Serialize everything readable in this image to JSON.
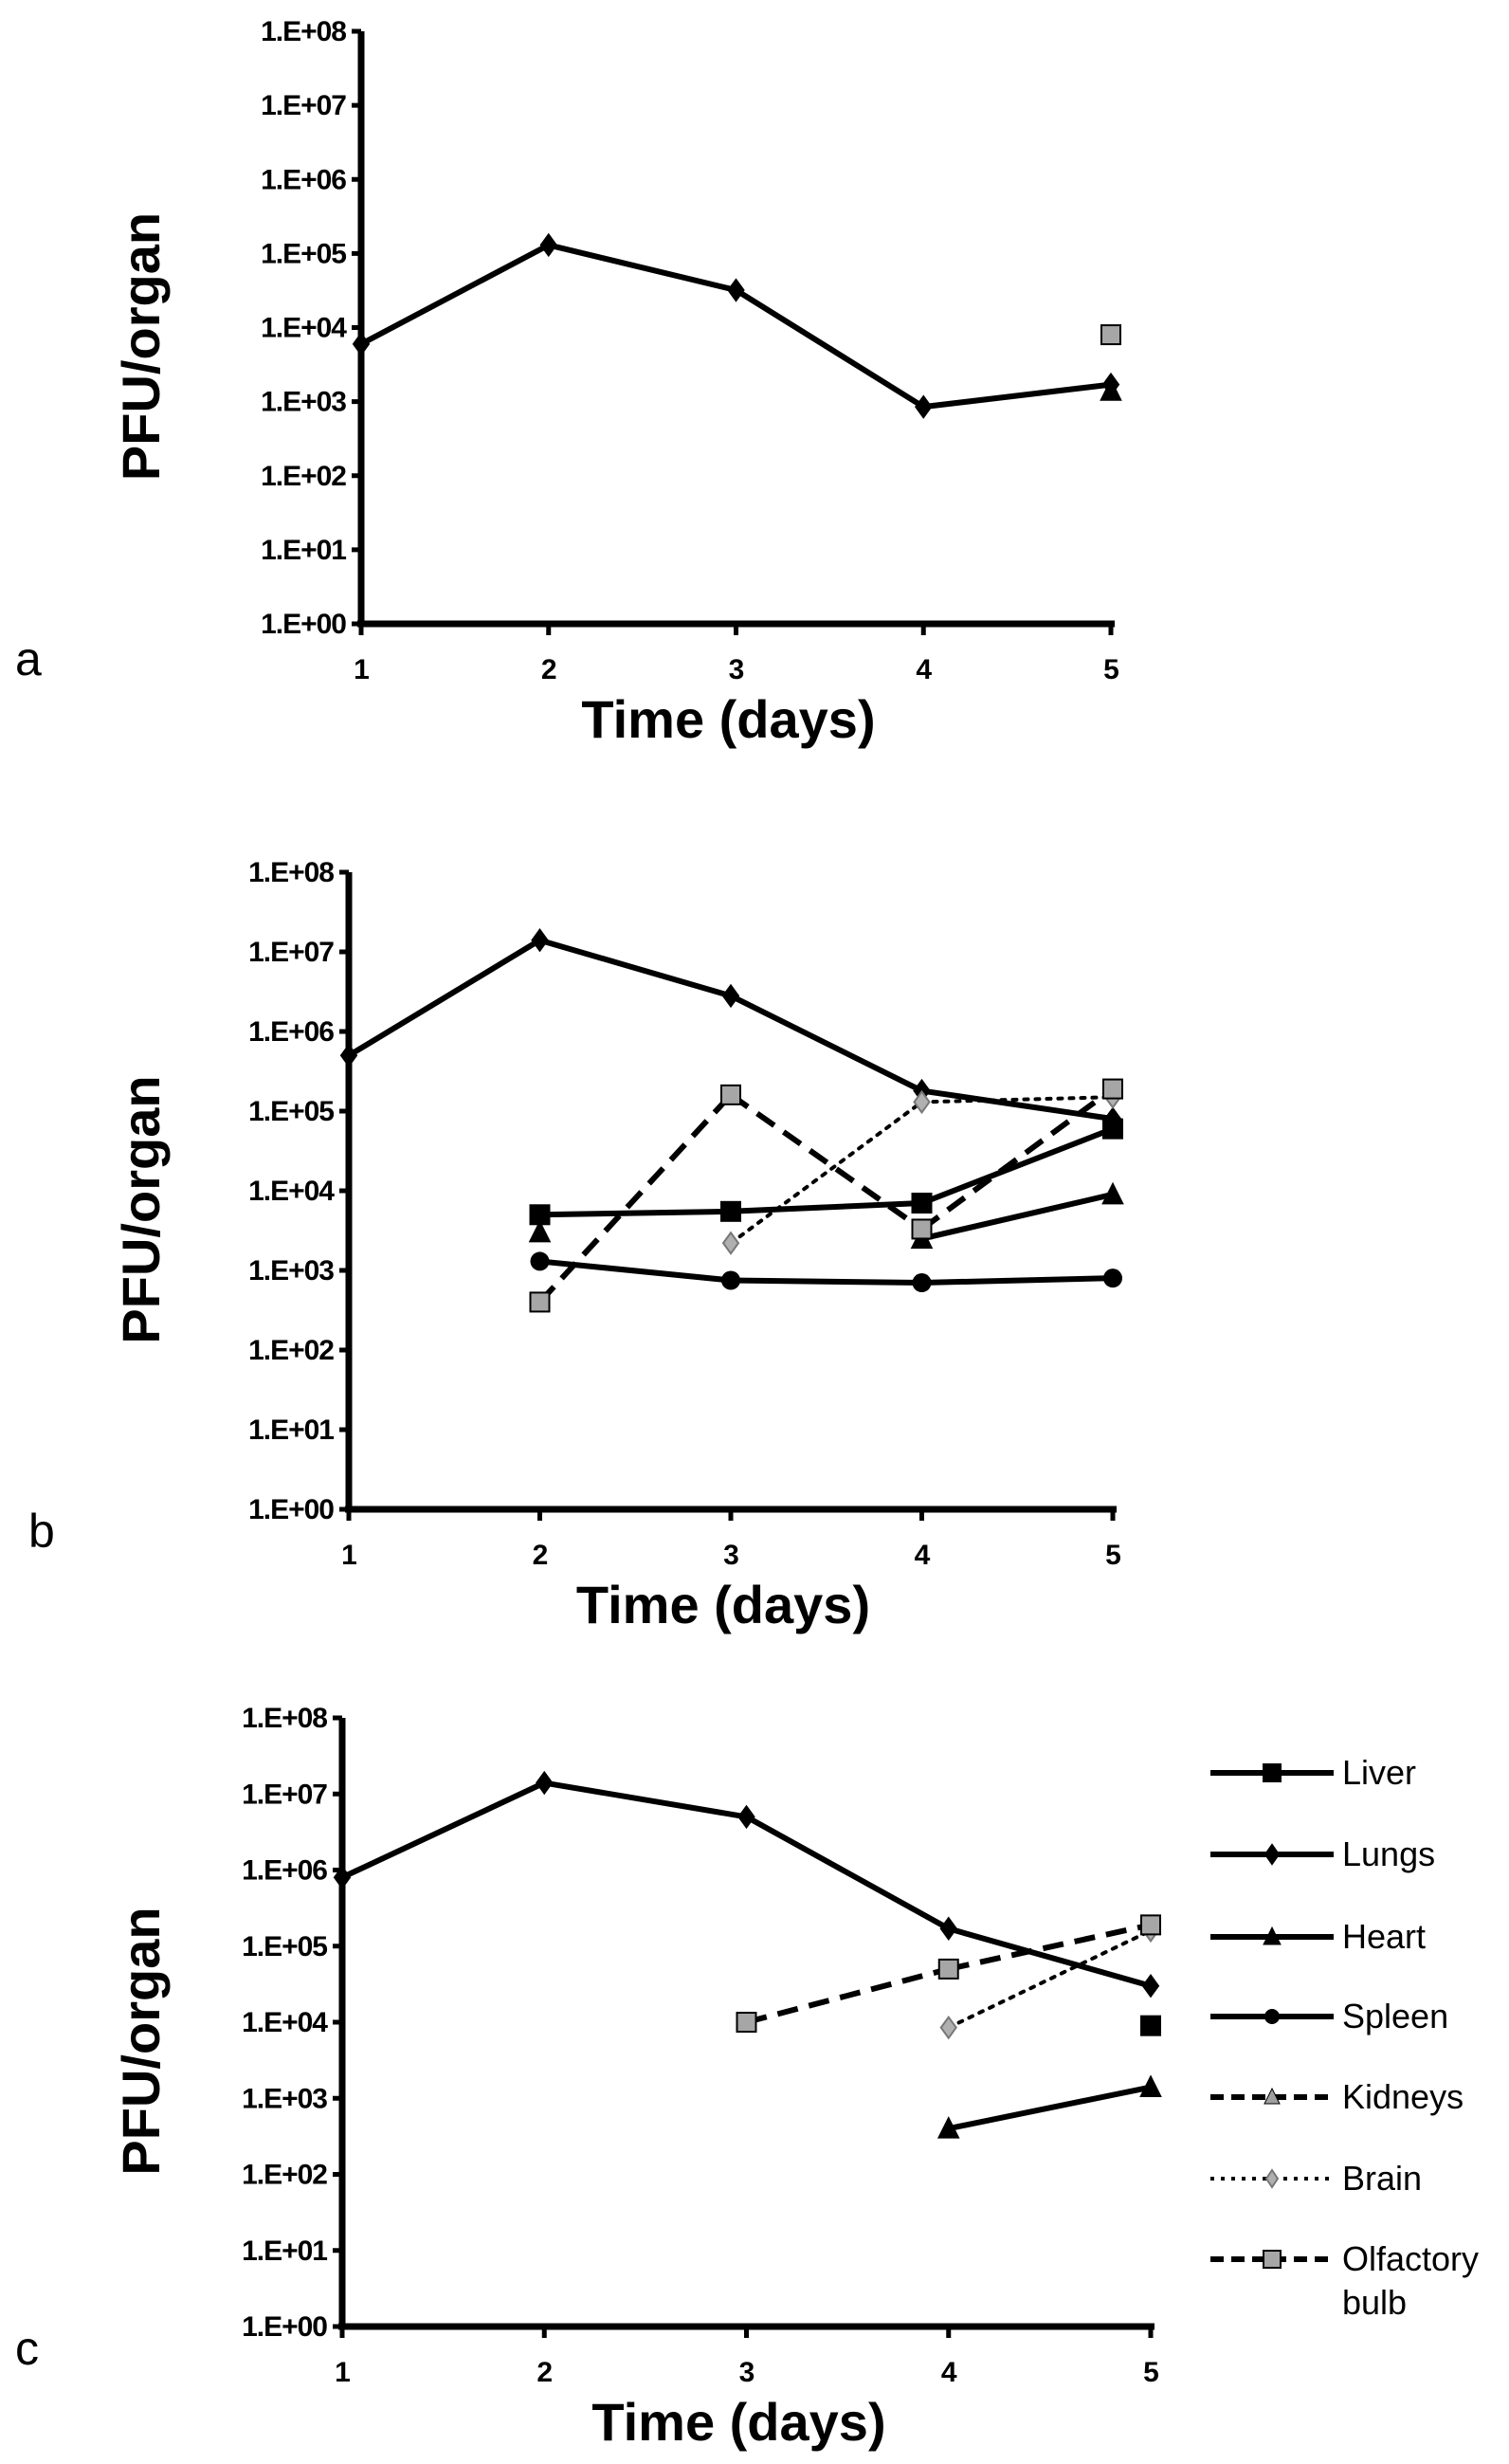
{
  "chart_data": [
    {
      "type": "line",
      "panel": "a",
      "xlabel": "Time (days)",
      "ylabel": "PFU/organ",
      "yscale": "log",
      "ylim": [
        1,
        100000000
      ],
      "xlim": [
        1,
        5
      ],
      "x": [
        1,
        2,
        3,
        4,
        5
      ],
      "xticks": [
        "1",
        "2",
        "3",
        "4",
        "5"
      ],
      "yticks": [
        "1.E+00",
        "1.E+01",
        "1.E+02",
        "1.E+03",
        "1.E+04",
        "1.E+05",
        "1.E+06",
        "1.E+07",
        "1.E+08"
      ],
      "series": [
        {
          "name": "Lungs",
          "values": [
            6000,
            130000,
            32000,
            850,
            1700
          ]
        },
        {
          "name": "Heart",
          "values": [
            null,
            null,
            null,
            null,
            1400
          ]
        },
        {
          "name": "Olfactory bulb",
          "values": [
            null,
            null,
            null,
            null,
            8000
          ]
        }
      ]
    },
    {
      "type": "line",
      "panel": "b",
      "xlabel": "Time (days)",
      "ylabel": "PFU/organ",
      "yscale": "log",
      "ylim": [
        1,
        100000000
      ],
      "xlim": [
        1,
        5
      ],
      "x": [
        1,
        2,
        3,
        4,
        5
      ],
      "xticks": [
        "1",
        "2",
        "3",
        "4",
        "5"
      ],
      "yticks": [
        "1.E+00",
        "1.E+01",
        "1.E+02",
        "1.E+03",
        "1.E+04",
        "1.E+05",
        "1.E+06",
        "1.E+07",
        "1.E+08"
      ],
      "series": [
        {
          "name": "Lungs",
          "values": [
            500000,
            14000000,
            2800000,
            180000,
            80000
          ]
        },
        {
          "name": "Liver",
          "values": [
            null,
            5000,
            5500,
            7000,
            60000
          ]
        },
        {
          "name": "Heart",
          "values": [
            null,
            3000,
            null,
            2500,
            9000
          ]
        },
        {
          "name": "Spleen",
          "values": [
            null,
            1300,
            750,
            700,
            800
          ]
        },
        {
          "name": "Brain",
          "values": [
            null,
            null,
            2200,
            130000,
            150000
          ]
        },
        {
          "name": "Olfactory bulb",
          "values": [
            null,
            400,
            160000,
            3300,
            190000
          ]
        }
      ]
    },
    {
      "type": "line",
      "panel": "c",
      "xlabel": "Time (days)",
      "ylabel": "PFU/organ",
      "yscale": "log",
      "ylim": [
        1,
        100000000
      ],
      "xlim": [
        1,
        5
      ],
      "x": [
        1,
        2,
        3,
        4,
        5
      ],
      "xticks": [
        "1",
        "2",
        "3",
        "4",
        "5"
      ],
      "yticks": [
        "1.E+00",
        "1.E+01",
        "1.E+02",
        "1.E+03",
        "1.E+04",
        "1.E+05",
        "1.E+06",
        "1.E+07",
        "1.E+08"
      ],
      "series": [
        {
          "name": "Lungs",
          "values": [
            800000,
            14000000,
            5000000,
            170000,
            30000
          ]
        },
        {
          "name": "Liver",
          "values": [
            null,
            null,
            null,
            null,
            9000
          ]
        },
        {
          "name": "Heart",
          "values": [
            null,
            null,
            null,
            400,
            1400
          ]
        },
        {
          "name": "Brain",
          "values": [
            null,
            null,
            null,
            8500,
            160000
          ]
        },
        {
          "name": "Olfactory bulb",
          "values": [
            null,
            null,
            10000,
            50000,
            190000
          ]
        }
      ],
      "legend": {
        "placement": "right",
        "entries": [
          {
            "name": "Liver",
            "lines": [
              "Liver"
            ]
          },
          {
            "name": "Lungs",
            "lines": [
              "Lungs"
            ]
          },
          {
            "name": "Heart",
            "lines": [
              "Heart"
            ]
          },
          {
            "name": "Spleen",
            "lines": [
              "Spleen"
            ]
          },
          {
            "name": "Kidneys",
            "lines": [
              "Kidneys"
            ]
          },
          {
            "name": "Brain",
            "lines": [
              "Brain"
            ]
          },
          {
            "name": "Olfactory bulb",
            "lines": [
              "Olfactory",
              "bulb"
            ]
          }
        ]
      }
    }
  ],
  "styles": {
    "Liver": {
      "dash": "solid",
      "marker": "square",
      "fill": "#000000",
      "line": "#000000"
    },
    "Lungs": {
      "dash": "solid",
      "marker": "diamond",
      "fill": "#000000",
      "line": "#000000"
    },
    "Heart": {
      "dash": "solid",
      "marker": "triangle",
      "fill": "#000000",
      "line": "#000000"
    },
    "Spleen": {
      "dash": "solid",
      "marker": "circle",
      "fill": "#000000",
      "line": "#000000"
    },
    "Kidneys": {
      "dash": "dashed",
      "marker": "triangle",
      "fill": "#a0a0a0",
      "line": "#000000"
    },
    "Brain": {
      "dash": "dotted",
      "marker": "diamond",
      "fill": "#b0b0b0",
      "line": "#000000"
    },
    "Olfactory bulb": {
      "dash": "dashed",
      "marker": "square",
      "fill": "#a6a6a6",
      "line": "#000000"
    }
  }
}
